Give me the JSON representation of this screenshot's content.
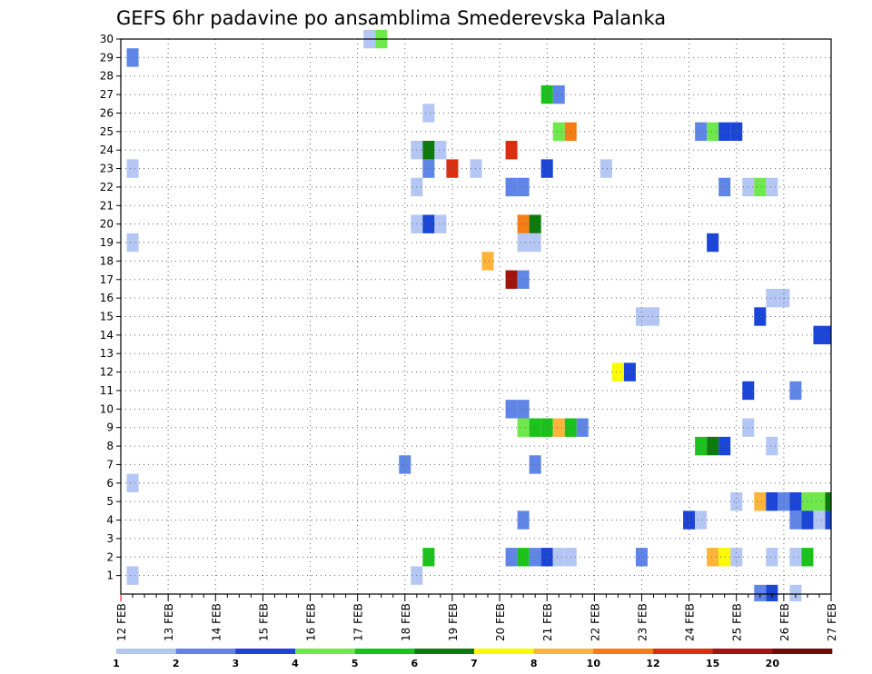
{
  "chart_data": {
    "type": "heatmap",
    "title": "GEFS 6hr padavine po ansamblima Smederevska Palanka",
    "xlabel": "",
    "ylabel": "",
    "x_ticks": [
      "12 FEB",
      "13 FEB",
      "14 FEB",
      "15 FEB",
      "16 FEB",
      "17 FEB",
      "18 FEB",
      "19 FEB",
      "20 FEB",
      "21 FEB",
      "22 FEB",
      "23 FEB",
      "24 FEB",
      "25 FEB",
      "26 FEB",
      "27 FEB"
    ],
    "y_ticks": [
      "1",
      "2",
      "3",
      "4",
      "5",
      "6",
      "7",
      "8",
      "9",
      "10",
      "11",
      "12",
      "13",
      "14",
      "15",
      "16",
      "17",
      "18",
      "19",
      "20",
      "21",
      "22",
      "23",
      "24",
      "25",
      "26",
      "27",
      "28",
      "29",
      "30"
    ],
    "xlim_days": [
      12,
      27
    ],
    "ylim": [
      0,
      30
    ],
    "grid": true,
    "colorbar": {
      "labels": [
        "1",
        "2",
        "3",
        "4",
        "5",
        "6",
        "7",
        "8",
        "10",
        "12",
        "15",
        "20"
      ],
      "colors": [
        "#b4c7f4",
        "#5f86e6",
        "#1a45d6",
        "#6ee84a",
        "#1cc21c",
        "#0c7a0c",
        "#fafa00",
        "#fdb43a",
        "#f47d14",
        "#dc2d0f",
        "#a0140a",
        "#6e0a05"
      ]
    },
    "cells": [
      {
        "d": 12.25,
        "m": 29,
        "c": 2
      },
      {
        "d": 12.25,
        "m": 23,
        "c": 1
      },
      {
        "d": 12.25,
        "m": 19,
        "c": 1
      },
      {
        "d": 12.25,
        "m": 6,
        "c": 1
      },
      {
        "d": 12.25,
        "m": 1,
        "c": 1
      },
      {
        "d": 17.25,
        "m": 30,
        "c": 1
      },
      {
        "d": 17.5,
        "m": 30,
        "c": 4
      },
      {
        "d": 18.25,
        "m": 24,
        "c": 1
      },
      {
        "d": 18.5,
        "m": 24,
        "c": 6
      },
      {
        "d": 18.75,
        "m": 24,
        "c": 1
      },
      {
        "d": 18.25,
        "m": 22,
        "c": 1
      },
      {
        "d": 18.5,
        "m": 23,
        "c": 2
      },
      {
        "d": 18.25,
        "m": 20,
        "c": 1
      },
      {
        "d": 18.5,
        "m": 20,
        "c": 3
      },
      {
        "d": 18.75,
        "m": 20,
        "c": 1
      },
      {
        "d": 18.5,
        "m": 26,
        "c": 1
      },
      {
        "d": 18.0,
        "m": 7,
        "c": 2
      },
      {
        "d": 18.25,
        "m": 1,
        "c": 1
      },
      {
        "d": 18.5,
        "m": 2,
        "c": 5
      },
      {
        "d": 19.0,
        "m": 23,
        "c": 10
      },
      {
        "d": 19.5,
        "m": 23,
        "c": 1
      },
      {
        "d": 19.75,
        "m": 18,
        "c": 8
      },
      {
        "d": 20.25,
        "m": 24,
        "c": 10
      },
      {
        "d": 20.25,
        "m": 22,
        "c": 2
      },
      {
        "d": 20.5,
        "m": 22,
        "c": 2
      },
      {
        "d": 20.5,
        "m": 20,
        "c": 9
      },
      {
        "d": 20.75,
        "m": 20,
        "c": 6
      },
      {
        "d": 20.5,
        "m": 19,
        "c": 1
      },
      {
        "d": 20.75,
        "m": 19,
        "c": 1
      },
      {
        "d": 20.25,
        "m": 17,
        "c": 11
      },
      {
        "d": 20.5,
        "m": 17,
        "c": 2
      },
      {
        "d": 20.25,
        "m": 10,
        "c": 2
      },
      {
        "d": 20.5,
        "m": 10,
        "c": 2
      },
      {
        "d": 20.5,
        "m": 9,
        "c": 4
      },
      {
        "d": 20.75,
        "m": 9,
        "c": 5
      },
      {
        "d": 21.0,
        "m": 9,
        "c": 5
      },
      {
        "d": 21.25,
        "m": 9,
        "c": 8
      },
      {
        "d": 21.5,
        "m": 9,
        "c": 5
      },
      {
        "d": 21.75,
        "m": 9,
        "c": 2
      },
      {
        "d": 20.75,
        "m": 7,
        "c": 2
      },
      {
        "d": 20.5,
        "m": 4,
        "c": 2
      },
      {
        "d": 20.25,
        "m": 2,
        "c": 2
      },
      {
        "d": 20.5,
        "m": 2,
        "c": 5
      },
      {
        "d": 20.75,
        "m": 2,
        "c": 2
      },
      {
        "d": 21.0,
        "m": 2,
        "c": 3
      },
      {
        "d": 21.25,
        "m": 2,
        "c": 1
      },
      {
        "d": 21.5,
        "m": 2,
        "c": 1
      },
      {
        "d": 21.0,
        "m": 27,
        "c": 5
      },
      {
        "d": 21.25,
        "m": 27,
        "c": 2
      },
      {
        "d": 21.25,
        "m": 25,
        "c": 4
      },
      {
        "d": 21.5,
        "m": 25,
        "c": 9
      },
      {
        "d": 21.0,
        "m": 23,
        "c": 3
      },
      {
        "d": 22.25,
        "m": 23,
        "c": 1
      },
      {
        "d": 22.5,
        "m": 12,
        "c": 7
      },
      {
        "d": 22.75,
        "m": 12,
        "c": 3
      },
      {
        "d": 23.0,
        "m": 15,
        "c": 1
      },
      {
        "d": 23.25,
        "m": 15,
        "c": 1
      },
      {
        "d": 23.0,
        "m": 2,
        "c": 2
      },
      {
        "d": 24.25,
        "m": 25,
        "c": 2
      },
      {
        "d": 24.5,
        "m": 25,
        "c": 4
      },
      {
        "d": 24.75,
        "m": 25,
        "c": 3
      },
      {
        "d": 25.0,
        "m": 25,
        "c": 3
      },
      {
        "d": 24.5,
        "m": 19,
        "c": 3
      },
      {
        "d": 24.75,
        "m": 22,
        "c": 2
      },
      {
        "d": 24.25,
        "m": 8,
        "c": 5
      },
      {
        "d": 24.5,
        "m": 8,
        "c": 6
      },
      {
        "d": 24.75,
        "m": 8,
        "c": 3
      },
      {
        "d": 24.0,
        "m": 4,
        "c": 3
      },
      {
        "d": 24.25,
        "m": 4,
        "c": 1
      },
      {
        "d": 24.5,
        "m": 2,
        "c": 8
      },
      {
        "d": 24.75,
        "m": 2,
        "c": 7
      },
      {
        "d": 25.0,
        "m": 2,
        "c": 1
      },
      {
        "d": 25.25,
        "m": 22,
        "c": 1
      },
      {
        "d": 25.5,
        "m": 22,
        "c": 4
      },
      {
        "d": 25.75,
        "m": 22,
        "c": 1
      },
      {
        "d": 25.75,
        "m": 16,
        "c": 1
      },
      {
        "d": 26.0,
        "m": 16,
        "c": 1
      },
      {
        "d": 25.5,
        "m": 15,
        "c": 3
      },
      {
        "d": 25.25,
        "m": 11,
        "c": 3
      },
      {
        "d": 25.25,
        "m": 9,
        "c": 1
      },
      {
        "d": 25.75,
        "m": 8,
        "c": 1
      },
      {
        "d": 25.0,
        "m": 5,
        "c": 1
      },
      {
        "d": 25.5,
        "m": 5,
        "c": 8
      },
      {
        "d": 25.75,
        "m": 5,
        "c": 3
      },
      {
        "d": 26.0,
        "m": 5,
        "c": 2
      },
      {
        "d": 26.25,
        "m": 5,
        "c": 3
      },
      {
        "d": 26.5,
        "m": 5,
        "c": 4
      },
      {
        "d": 26.75,
        "m": 5,
        "c": 4
      },
      {
        "d": 27.0,
        "m": 5,
        "c": 6
      },
      {
        "d": 25.75,
        "m": 2,
        "c": 1
      },
      {
        "d": 26.25,
        "m": 11,
        "c": 2
      },
      {
        "d": 26.75,
        "m": 14,
        "c": 3
      },
      {
        "d": 27.0,
        "m": 14,
        "c": 3
      },
      {
        "d": 26.25,
        "m": 4,
        "c": 2
      },
      {
        "d": 26.5,
        "m": 4,
        "c": 3
      },
      {
        "d": 26.75,
        "m": 4,
        "c": 1
      },
      {
        "d": 27.0,
        "m": 4,
        "c": 3
      },
      {
        "d": 26.25,
        "m": 2,
        "c": 1
      },
      {
        "d": 26.5,
        "m": 2,
        "c": 5
      },
      {
        "d": 25.5,
        "m": 0,
        "c": 2
      },
      {
        "d": 25.75,
        "m": 0,
        "c": 3
      },
      {
        "d": 26.25,
        "m": 0,
        "c": 1
      }
    ]
  }
}
